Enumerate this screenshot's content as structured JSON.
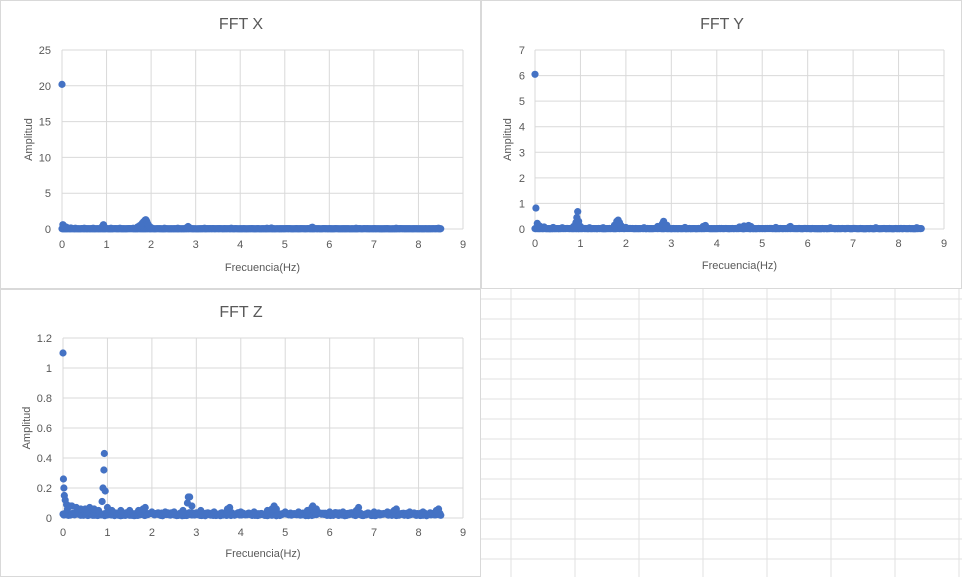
{
  "colors": {
    "series": "#4472c4",
    "grid": "#d9d9d9",
    "text": "#595959",
    "sheet_grid": "#e2e2e2"
  },
  "chart_data": [
    {
      "type": "scatter",
      "title": "FFT X",
      "xlabel": "Frecuencia(Hz)",
      "ylabel": "Amplitud",
      "xlim": [
        0,
        9
      ],
      "ylim": [
        0,
        25
      ],
      "xticks": [
        0,
        1,
        2,
        3,
        4,
        5,
        6,
        7,
        8,
        9
      ],
      "yticks": [
        0,
        5,
        10,
        15,
        20,
        25
      ],
      "grid": true,
      "legend": "none",
      "x_max_data": 8.5,
      "baseline": 0.05,
      "series": [
        {
          "x": [
            0,
            0.02,
            0.05,
            0.1,
            0.2,
            0.3,
            0.5,
            0.7,
            0.9,
            0.93,
            0.95,
            1.1,
            1.3,
            1.6,
            1.7,
            1.75,
            1.8,
            1.83,
            1.86,
            1.88,
            1.9,
            1.93,
            1.96,
            2.0,
            2.3,
            2.6,
            2.8,
            2.83,
            2.86,
            3.2,
            3.8,
            4.6,
            4.7,
            5.6,
            5.62,
            6.6,
            7.5,
            8.45
          ],
          "y": [
            20.2,
            0.6,
            0.4,
            0.25,
            0.15,
            0.1,
            0.1,
            0.1,
            0.3,
            0.6,
            0.3,
            0.1,
            0.1,
            0.1,
            0.3,
            0.5,
            0.8,
            1.0,
            1.2,
            1.3,
            1.1,
            0.7,
            0.4,
            0.2,
            0.1,
            0.1,
            0.2,
            0.35,
            0.2,
            0.1,
            0.1,
            0.1,
            0.15,
            0.2,
            0.25,
            0.1,
            0.1,
            0.1
          ]
        }
      ]
    },
    {
      "type": "scatter",
      "title": "FFT Y",
      "xlabel": "Frecuencia(Hz)",
      "ylabel": "Amplitud",
      "xlim": [
        0,
        9
      ],
      "ylim": [
        0,
        7
      ],
      "xticks": [
        0,
        1,
        2,
        3,
        4,
        5,
        6,
        7,
        8,
        9
      ],
      "yticks": [
        0,
        1,
        2,
        3,
        4,
        5,
        6,
        7
      ],
      "grid": true,
      "legend": "none",
      "x_max_data": 8.5,
      "baseline": 0.02,
      "series": [
        {
          "x": [
            0,
            0.02,
            0.05,
            0.1,
            0.2,
            0.4,
            0.6,
            0.85,
            0.9,
            0.92,
            0.94,
            0.96,
            1.0,
            1.2,
            1.5,
            1.75,
            1.8,
            1.83,
            1.86,
            1.9,
            2.0,
            2.4,
            2.7,
            2.8,
            2.83,
            2.9,
            3.3,
            3.7,
            3.75,
            4.5,
            4.6,
            4.7,
            4.75,
            5.3,
            5.6,
            5.62,
            6.5,
            7.5,
            8.4
          ],
          "y": [
            6.05,
            0.82,
            0.22,
            0.12,
            0.08,
            0.06,
            0.05,
            0.1,
            0.25,
            0.45,
            0.68,
            0.3,
            0.1,
            0.05,
            0.05,
            0.15,
            0.3,
            0.35,
            0.25,
            0.12,
            0.06,
            0.05,
            0.1,
            0.2,
            0.3,
            0.15,
            0.06,
            0.1,
            0.14,
            0.08,
            0.12,
            0.14,
            0.1,
            0.06,
            0.08,
            0.1,
            0.05,
            0.05,
            0.05
          ]
        }
      ]
    },
    {
      "type": "scatter",
      "title": "FFT Z",
      "xlabel": "Frecuencia(Hz)",
      "ylabel": "Amplitud",
      "xlim": [
        0,
        9
      ],
      "ylim": [
        0,
        1.2
      ],
      "xticks": [
        0,
        1,
        2,
        3,
        4,
        5,
        6,
        7,
        8,
        9
      ],
      "yticks": [
        0,
        0.2,
        0.4,
        0.6,
        0.8,
        1,
        1.2
      ],
      "grid": true,
      "legend": "none",
      "x_max_data": 8.5,
      "baseline": 0.03,
      "series": [
        {
          "x": [
            0,
            0.01,
            0.02,
            0.03,
            0.05,
            0.08,
            0.1,
            0.15,
            0.2,
            0.3,
            0.4,
            0.5,
            0.6,
            0.7,
            0.8,
            0.88,
            0.9,
            0.92,
            0.93,
            0.95,
            1.0,
            1.1,
            1.3,
            1.5,
            1.7,
            1.8,
            1.85,
            2.0,
            2.3,
            2.5,
            2.7,
            2.8,
            2.82,
            2.85,
            2.9,
            3.1,
            3.4,
            3.7,
            3.75,
            4.0,
            4.3,
            4.6,
            4.7,
            4.75,
            4.8,
            5.0,
            5.3,
            5.5,
            5.6,
            5.62,
            5.7,
            6.0,
            6.3,
            6.6,
            6.65,
            7.0,
            7.3,
            7.45,
            7.5,
            7.8,
            8.1,
            8.4,
            8.45
          ],
          "y": [
            1.1,
            0.26,
            0.2,
            0.15,
            0.12,
            0.09,
            0.06,
            0.08,
            0.08,
            0.07,
            0.06,
            0.06,
            0.07,
            0.06,
            0.05,
            0.11,
            0.2,
            0.32,
            0.43,
            0.18,
            0.07,
            0.05,
            0.05,
            0.05,
            0.05,
            0.06,
            0.07,
            0.04,
            0.04,
            0.04,
            0.05,
            0.1,
            0.14,
            0.14,
            0.08,
            0.05,
            0.04,
            0.06,
            0.07,
            0.04,
            0.04,
            0.05,
            0.06,
            0.08,
            0.06,
            0.04,
            0.04,
            0.05,
            0.07,
            0.08,
            0.06,
            0.04,
            0.04,
            0.05,
            0.07,
            0.04,
            0.04,
            0.05,
            0.06,
            0.04,
            0.04,
            0.05,
            0.06
          ]
        }
      ]
    }
  ]
}
